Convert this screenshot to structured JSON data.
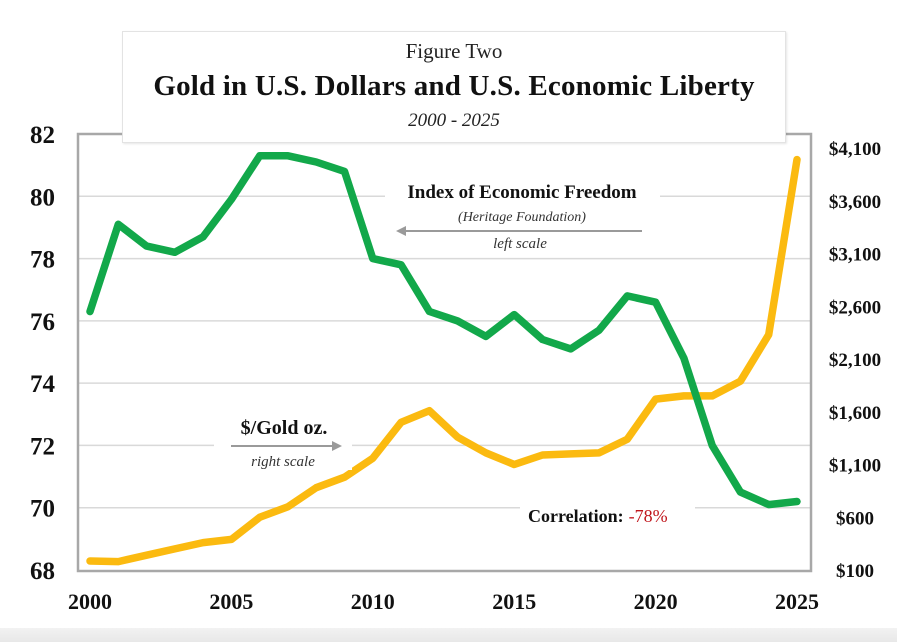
{
  "title": {
    "kicker": "Figure Two",
    "main": "Gold in U.S. Dollars and U.S. Economic Liberty",
    "subtitle": "2000 - 2025"
  },
  "chart_data": {
    "type": "line",
    "title": "Gold in U.S. Dollars and U.S. Economic Liberty",
    "subtitle": "2000 - 2025",
    "x": [
      2000,
      2001,
      2002,
      2003,
      2004,
      2005,
      2006,
      2007,
      2008,
      2009,
      2010,
      2011,
      2012,
      2013,
      2014,
      2015,
      2016,
      2017,
      2018,
      2019,
      2020,
      2021,
      2022,
      2023,
      2024,
      2025
    ],
    "x_range": [
      2000,
      2025
    ],
    "x_ticks": [
      "2000",
      "2005",
      "2010",
      "2015",
      "2020",
      "2025"
    ],
    "grid": true,
    "left_axis": {
      "range": [
        68,
        82
      ],
      "ticks": [
        "68",
        "70",
        "72",
        "74",
        "76",
        "78",
        "80",
        "82"
      ]
    },
    "right_axis": {
      "range": [
        100,
        4100
      ],
      "ticks": [
        "$100",
        "$600",
        "$1,100",
        "$1,600",
        "$2,100",
        "$2,600",
        "$3,100",
        "$3,600",
        "$4,100"
      ]
    },
    "series": [
      {
        "name": "Index of Economic Freedom",
        "source_note": "(Heritage Foundation)",
        "scale_note": "left scale",
        "axis": "left",
        "color": "#12A84A",
        "values": [
          76.3,
          79.1,
          78.4,
          78.2,
          78.7,
          79.9,
          81.3,
          81.3,
          81.1,
          80.8,
          78.0,
          77.8,
          76.3,
          76.0,
          75.5,
          76.2,
          75.4,
          75.1,
          75.7,
          76.8,
          76.6,
          74.8,
          72.0,
          70.5,
          70.1,
          70.2
        ]
      },
      {
        "name": "$/Gold oz.",
        "scale_note": "right scale",
        "axis": "right",
        "color": "#FBBA10",
        "values": [
          185,
          180,
          240,
          300,
          360,
          390,
          600,
          700,
          880,
          980,
          1160,
          1500,
          1610,
          1360,
          1210,
          1100,
          1190,
          1200,
          1210,
          1340,
          1720,
          1750,
          1750,
          1890,
          2330,
          3990
        ]
      }
    ],
    "annotations": {
      "correlation_label": "Correlation:",
      "correlation_value": "-78%",
      "correlation_color": "#C0161C"
    }
  }
}
